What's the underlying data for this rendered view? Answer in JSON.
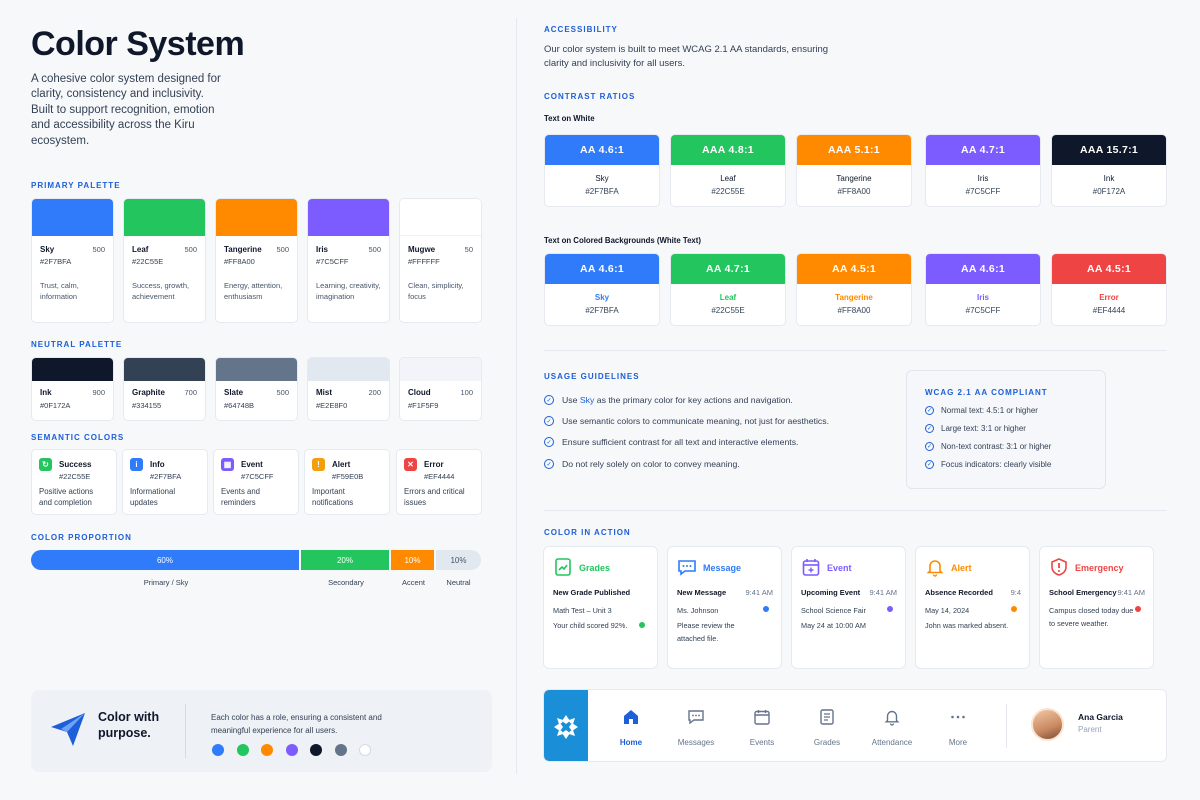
{
  "header": {
    "title": "Color System",
    "intro": "A cohesive color system designed for clarity, consistency and inclusivity. Built to support recognition, emotion and accessibility across the Kiru ecosystem."
  },
  "primary_palette": {
    "label": "PRIMARY PALETTE",
    "items": [
      {
        "name": "Sky",
        "shade": "500",
        "hex": "#2F7BFA",
        "desc": "Trust, calm, information",
        "color": "#2F7BFA"
      },
      {
        "name": "Leaf",
        "shade": "500",
        "hex": "#22C55E",
        "desc": "Success, growth, achievement",
        "color": "#22C55E"
      },
      {
        "name": "Tangerine",
        "shade": "500",
        "hex": "#FF8A00",
        "desc": "Energy, attention, enthusiasm",
        "color": "#FF8A00"
      },
      {
        "name": "Iris",
        "shade": "500",
        "hex": "#7C5CFF",
        "desc": "Learning, creativity, imagination",
        "color": "#7C5CFF"
      },
      {
        "name": "Mugwe",
        "shade": "50",
        "hex": "#FFFFFF",
        "desc": "Clean, simplicity, focus",
        "color": "#FFFFFF"
      }
    ]
  },
  "neutral_palette": {
    "label": "NEUTRAL PALETTE",
    "items": [
      {
        "name": "Ink",
        "shade": "900",
        "hex": "#0F172A",
        "color": "#0F172A"
      },
      {
        "name": "Graphite",
        "shade": "700",
        "hex": "#334155",
        "color": "#334155"
      },
      {
        "name": "Slate",
        "shade": "500",
        "hex": "#64748B",
        "color": "#64748B"
      },
      {
        "name": "Mist",
        "shade": "200",
        "hex": "#E2E8F0",
        "color": "#E2E8F0"
      },
      {
        "name": "Cloud",
        "shade": "100",
        "hex": "#F1F5F9",
        "color": "#F1F5F9"
      }
    ]
  },
  "semantic": {
    "label": "SEMANTIC COLORS",
    "items": [
      {
        "name": "Success",
        "hex": "#22C55E",
        "desc": "Positive actions and completion",
        "color": "#22C55E",
        "icon": "success-icon"
      },
      {
        "name": "Info",
        "hex": "#2F7BFA",
        "desc": "Informational updates",
        "color": "#2F7BFA",
        "icon": "info-icon"
      },
      {
        "name": "Event",
        "hex": "#7C5CFF",
        "desc": "Events and reminders",
        "color": "#7C5CFF",
        "icon": "calendar-icon"
      },
      {
        "name": "Alert",
        "hex": "#F59E0B",
        "desc": "Important notifications",
        "color": "#F59E0B",
        "icon": "warning-icon"
      },
      {
        "name": "Error",
        "hex": "#EF4444",
        "desc": "Errors and critical issues",
        "color": "#EF4444",
        "icon": "error-icon"
      }
    ]
  },
  "proportion": {
    "label": "COLOR PROPORTION",
    "segments": [
      {
        "value": "60%",
        "fraction": 0.6,
        "label": "Primary / Sky",
        "color": "#2F7BFA"
      },
      {
        "value": "20%",
        "fraction": 0.2,
        "label": "Secondary",
        "color": "#22C55E"
      },
      {
        "value": "10%",
        "fraction": 0.1,
        "label": "Accent",
        "color": "#FF8A00"
      },
      {
        "value": "10%",
        "fraction": 0.1,
        "label": "Neutral",
        "color": "#E2E8F0"
      }
    ]
  },
  "purpose": {
    "title": "Color with purpose.",
    "text": "Each color has a role, ensuring a consistent and meaningful experience for all users.",
    "dots": [
      "#2F7BFA",
      "#22C55E",
      "#FF8A00",
      "#7C5CFF",
      "#0F172A",
      "#64748B",
      "#FFFFFF"
    ]
  },
  "accessibility": {
    "label": "ACCESSIBILITY",
    "text": "Our color system is built to meet WCAG 2.1 AA standards, ensuring clarity and inclusivity for all users.",
    "contrast_label": "CONTRAST RATIOS",
    "white_label": "Text on White",
    "colored_label": "Text on Colored Backgrounds (White Text)",
    "on_white": [
      {
        "rating": "AA  4.6:1",
        "name": "Sky",
        "hex": "#2F7BFA",
        "color": "#2F7BFA"
      },
      {
        "rating": "AAA  4.8:1",
        "name": "Leaf",
        "hex": "#22C55E",
        "color": "#22C55E"
      },
      {
        "rating": "AAA  5.1:1",
        "name": "Tangerine",
        "hex": "#FF8A00",
        "color": "#FF8A00"
      },
      {
        "rating": "AA  4.7:1",
        "name": "Iris",
        "hex": "#7C5CFF",
        "color": "#7C5CFF"
      },
      {
        "rating": "AAA  15.7:1",
        "name": "Ink",
        "hex": "#0F172A",
        "color": "#0F172A"
      }
    ],
    "on_colored": [
      {
        "rating": "AA  4.6:1",
        "name": "Sky",
        "hex": "#2F7BFA",
        "color": "#2F7BFA"
      },
      {
        "rating": "AA  4.7:1",
        "name": "Leaf",
        "hex": "#22C55E",
        "color": "#22C55E"
      },
      {
        "rating": "AA  4.5:1",
        "name": "Tangerine",
        "hex": "#FF8A00",
        "color": "#FF8A00"
      },
      {
        "rating": "AA  4.6:1",
        "name": "Iris",
        "hex": "#7C5CFF",
        "color": "#7C5CFF"
      },
      {
        "rating": "AA  4.5:1",
        "name": "Error",
        "hex": "#EF4444",
        "color": "#EF4444"
      }
    ]
  },
  "guidelines": {
    "label": "USAGE GUIDELINES",
    "item1_pre": "Use ",
    "item1_highlight": "Sky",
    "item1_post": " as the primary color for key actions and navigation.",
    "item2": "Use semantic colors to communicate meaning, not just for aesthetics.",
    "item3": "Ensure sufficient contrast for all text and interactive elements.",
    "item4": "Do not rely solely on color to convey meaning."
  },
  "wcag": {
    "label": "WCAG 2.1 AA COMPLIANT",
    "items": [
      "Normal text: 4.5:1 or higher",
      "Large text: 3:1 or higher",
      "Non-text contrast: 3:1 or higher",
      "Focus indicators: clearly visible"
    ]
  },
  "in_action": {
    "label": "COLOR IN ACTION",
    "cards": [
      {
        "title": "Grades",
        "head": "New Grade Published",
        "time": "",
        "line1": "Math Test – Unit 3",
        "line2": "Your child scored 92%.",
        "color": "#22C55E",
        "icon": "grades-icon"
      },
      {
        "title": "Message",
        "head": "New Message",
        "time": "9:41 AM",
        "line1": "Ms. Johnson",
        "line2": "Please review the attached file.",
        "color": "#2F7BFA",
        "icon": "message-icon"
      },
      {
        "title": "Event",
        "head": "Upcoming Event",
        "time": "9:41 AM",
        "line1": "School Science Fair",
        "line2": "May 24 at 10:00 AM",
        "color": "#7C5CFF",
        "icon": "calendar-icon"
      },
      {
        "title": "Alert",
        "head": "Absence Recorded",
        "time": "9:4",
        "line1": "May 14, 2024",
        "line2": "John was marked absent.",
        "color": "#FF8A00",
        "icon": "bell-icon"
      },
      {
        "title": "Emergency",
        "head": "School Emergency",
        "time": "9:41 AM",
        "line1": "Campus closed today due to severe weather.",
        "line2": "",
        "color": "#EF4444",
        "icon": "shield-alert-icon"
      }
    ]
  },
  "nav": {
    "items": [
      {
        "label": "Home",
        "icon": "home-icon",
        "active": true
      },
      {
        "label": "Messages",
        "icon": "messages-icon"
      },
      {
        "label": "Events",
        "icon": "calendar-icon"
      },
      {
        "label": "Grades",
        "icon": "grades-icon"
      },
      {
        "label": "Attendance",
        "icon": "bell-icon"
      },
      {
        "label": "More",
        "icon": "more-icon"
      }
    ],
    "user_name": "Ana Garcia",
    "user_role": "Parent",
    "accent": "#1A8FD8"
  }
}
